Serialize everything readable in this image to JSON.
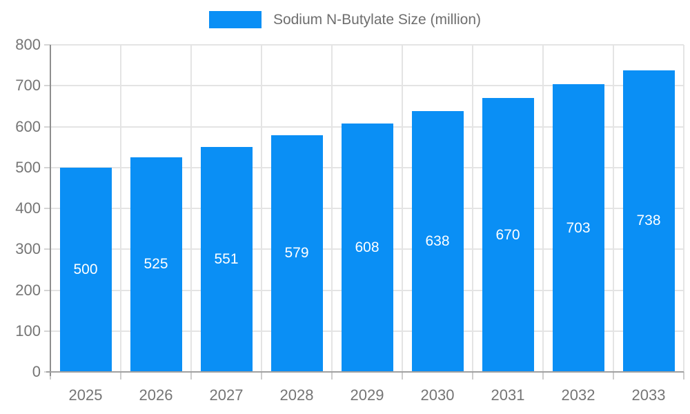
{
  "legend": {
    "label": "Sodium N-Butylate Size (million)"
  },
  "chart_data": {
    "type": "bar",
    "title": "Sodium N-Butylate Size (million)",
    "series_name": "Sodium N-Butylate Size (million)",
    "categories": [
      "2025",
      "2026",
      "2027",
      "2028",
      "2029",
      "2030",
      "2031",
      "2032",
      "2033"
    ],
    "values": [
      500,
      525,
      551,
      579,
      608,
      638,
      670,
      703,
      738
    ],
    "xlabel": "",
    "ylabel": "",
    "ylim": [
      0,
      800
    ],
    "yticks": [
      0,
      100,
      200,
      300,
      400,
      500,
      600,
      700,
      800
    ],
    "grid": true,
    "legend_position": "top",
    "bar_color": "#0a8ff5",
    "value_label_color": "#ffffff",
    "axis_text_color": "#757575"
  }
}
